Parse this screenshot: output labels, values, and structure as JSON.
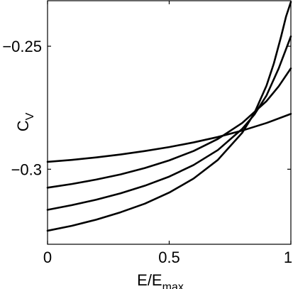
{
  "chart_data": {
    "type": "line",
    "title": "",
    "xlabel": {
      "main": "E/E",
      "sub": "max"
    },
    "ylabel": {
      "main": "C",
      "sub": "V"
    },
    "xlim": [
      0,
      1
    ],
    "ylim": [
      -0.3305,
      -0.2315
    ],
    "grid": false,
    "legend": "none",
    "x_ticks": [
      0,
      0.5,
      1
    ],
    "x_tick_labels": [
      "0",
      "0.5",
      "1"
    ],
    "y_ticks": [
      -0.3,
      -0.25
    ],
    "y_tick_labels": [
      "−0.3",
      "−0.25"
    ],
    "line_color": "#000000",
    "series": [
      {
        "x": [
          0,
          0.1,
          0.2,
          0.3,
          0.4,
          0.5,
          0.6,
          0.7,
          0.8,
          0.9,
          1.0
        ],
        "values": [
          -0.297,
          -0.2962,
          -0.2952,
          -0.294,
          -0.2926,
          -0.291,
          -0.2891,
          -0.2869,
          -0.2843,
          -0.2812,
          -0.2775
        ]
      },
      {
        "x": [
          0,
          0.1,
          0.2,
          0.3,
          0.4,
          0.5,
          0.6,
          0.7,
          0.8,
          0.9,
          0.95,
          1.0
        ],
        "values": [
          -0.3075,
          -0.306,
          -0.3042,
          -0.3021,
          -0.2995,
          -0.2964,
          -0.2926,
          -0.2877,
          -0.2812,
          -0.2723,
          -0.2663,
          -0.259
        ]
      },
      {
        "x": [
          0,
          0.1,
          0.2,
          0.3,
          0.4,
          0.5,
          0.6,
          0.7,
          0.8,
          0.85,
          0.9,
          0.95,
          1.0
        ],
        "values": [
          -0.3165,
          -0.3146,
          -0.3124,
          -0.3098,
          -0.3067,
          -0.303,
          -0.2983,
          -0.2922,
          -0.2836,
          -0.2778,
          -0.27,
          -0.259,
          -0.246
        ]
      },
      {
        "x": [
          0,
          0.1,
          0.2,
          0.3,
          0.4,
          0.5,
          0.6,
          0.7,
          0.8,
          0.85,
          0.9,
          0.93,
          0.96,
          0.98,
          1.0
        ],
        "values": [
          -0.325,
          -0.323,
          -0.3205,
          -0.3175,
          -0.314,
          -0.3095,
          -0.3038,
          -0.2962,
          -0.2852,
          -0.2772,
          -0.266,
          -0.257,
          -0.246,
          -0.238,
          -0.232
        ]
      }
    ]
  }
}
